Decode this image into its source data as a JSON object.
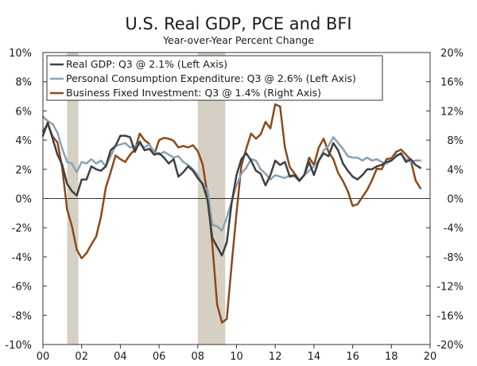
{
  "chart_data": {
    "type": "line",
    "title": "U.S. Real GDP, PCE and BFI",
    "subtitle": "Year-over-Year Percent Change",
    "x_ticks": [
      "00",
      "02",
      "04",
      "06",
      "08",
      "10",
      "12",
      "14",
      "16",
      "18",
      "20"
    ],
    "x_range": [
      2000,
      2020
    ],
    "left_axis": {
      "range": [
        -10,
        10
      ],
      "ticks": [
        10,
        8,
        6,
        4,
        2,
        0,
        -2,
        -4,
        -6,
        -8,
        -10
      ],
      "tick_labels": [
        "10%",
        "8%",
        "6%",
        "4%",
        "2%",
        "0%",
        "-2%",
        "-4%",
        "-6%",
        "-8%",
        "-10%"
      ]
    },
    "right_axis": {
      "range": [
        -20,
        20
      ],
      "ticks": [
        20,
        16,
        12,
        8,
        4,
        0,
        -4,
        -8,
        -12,
        -16,
        -20
      ],
      "tick_labels": [
        "20%",
        "16%",
        "12%",
        "8%",
        "4%",
        "0%",
        "-4%",
        "-8%",
        "-12%",
        "-16%",
        "-20%"
      ]
    },
    "recessions": [
      {
        "start": 2001.25,
        "end": 2001.83
      },
      {
        "start": 2008.0,
        "end": 2009.42
      }
    ],
    "series": [
      {
        "name": "Real GDP",
        "legend": "Real GDP: Q3 @ 2.1% (Left Axis)",
        "color": "#404040",
        "axis": "left",
        "points": [
          [
            2000.0,
            4.3
          ],
          [
            2000.25,
            5.2
          ],
          [
            2000.5,
            4.1
          ],
          [
            2000.75,
            3.0
          ],
          [
            2001.0,
            2.3
          ],
          [
            2001.25,
            1.0
          ],
          [
            2001.5,
            0.5
          ],
          [
            2001.75,
            0.2
          ],
          [
            2002.0,
            1.3
          ],
          [
            2002.25,
            1.3
          ],
          [
            2002.5,
            2.2
          ],
          [
            2002.75,
            2.0
          ],
          [
            2003.0,
            1.9
          ],
          [
            2003.25,
            2.2
          ],
          [
            2003.5,
            3.3
          ],
          [
            2003.75,
            3.6
          ],
          [
            2004.0,
            4.3
          ],
          [
            2004.25,
            4.3
          ],
          [
            2004.5,
            4.2
          ],
          [
            2004.75,
            3.2
          ],
          [
            2005.0,
            3.9
          ],
          [
            2005.25,
            3.3
          ],
          [
            2005.5,
            3.4
          ],
          [
            2005.75,
            3.0
          ],
          [
            2006.0,
            3.1
          ],
          [
            2006.25,
            2.8
          ],
          [
            2006.5,
            2.4
          ],
          [
            2006.75,
            2.7
          ],
          [
            2007.0,
            1.5
          ],
          [
            2007.25,
            1.8
          ],
          [
            2007.5,
            2.2
          ],
          [
            2007.75,
            1.9
          ],
          [
            2008.0,
            1.4
          ],
          [
            2008.25,
            1.0
          ],
          [
            2008.5,
            -0.1
          ],
          [
            2008.75,
            -2.7
          ],
          [
            2009.0,
            -3.3
          ],
          [
            2009.25,
            -3.9
          ],
          [
            2009.5,
            -3.0
          ],
          [
            2009.75,
            -0.3
          ],
          [
            2010.0,
            1.6
          ],
          [
            2010.25,
            2.7
          ],
          [
            2010.5,
            3.1
          ],
          [
            2010.75,
            2.6
          ],
          [
            2011.0,
            1.9
          ],
          [
            2011.25,
            1.7
          ],
          [
            2011.5,
            0.9
          ],
          [
            2011.75,
            1.6
          ],
          [
            2012.0,
            2.6
          ],
          [
            2012.25,
            2.3
          ],
          [
            2012.5,
            2.5
          ],
          [
            2012.75,
            1.5
          ],
          [
            2013.0,
            1.6
          ],
          [
            2013.25,
            1.2
          ],
          [
            2013.5,
            1.6
          ],
          [
            2013.75,
            2.5
          ],
          [
            2014.0,
            1.6
          ],
          [
            2014.25,
            2.6
          ],
          [
            2014.5,
            3.1
          ],
          [
            2014.75,
            2.9
          ],
          [
            2015.0,
            3.8
          ],
          [
            2015.25,
            3.3
          ],
          [
            2015.5,
            2.4
          ],
          [
            2015.75,
            1.9
          ],
          [
            2016.0,
            1.5
          ],
          [
            2016.25,
            1.3
          ],
          [
            2016.5,
            1.6
          ],
          [
            2016.75,
            2.0
          ],
          [
            2017.0,
            2.0
          ],
          [
            2017.25,
            2.2
          ],
          [
            2017.5,
            2.3
          ],
          [
            2017.75,
            2.5
          ],
          [
            2018.0,
            2.6
          ],
          [
            2018.25,
            2.9
          ],
          [
            2018.5,
            3.1
          ],
          [
            2018.75,
            2.5
          ],
          [
            2019.0,
            2.7
          ],
          [
            2019.25,
            2.3
          ],
          [
            2019.5,
            2.1
          ]
        ]
      },
      {
        "name": "Personal Consumption Expenditure",
        "legend": "Personal Consumption Expenditure: Q3 @ 2.6% (Left Axis)",
        "color": "#8aa2b6",
        "axis": "left",
        "points": [
          [
            2000.0,
            5.6
          ],
          [
            2000.25,
            5.3
          ],
          [
            2000.5,
            5.1
          ],
          [
            2000.75,
            4.5
          ],
          [
            2001.0,
            3.4
          ],
          [
            2001.25,
            2.5
          ],
          [
            2001.5,
            2.4
          ],
          [
            2001.75,
            1.8
          ],
          [
            2002.0,
            2.5
          ],
          [
            2002.25,
            2.4
          ],
          [
            2002.5,
            2.7
          ],
          [
            2002.75,
            2.4
          ],
          [
            2003.0,
            2.6
          ],
          [
            2003.25,
            2.2
          ],
          [
            2003.5,
            2.9
          ],
          [
            2003.75,
            3.6
          ],
          [
            2004.0,
            3.7
          ],
          [
            2004.25,
            3.8
          ],
          [
            2004.5,
            3.5
          ],
          [
            2004.75,
            3.6
          ],
          [
            2005.0,
            3.7
          ],
          [
            2005.25,
            3.5
          ],
          [
            2005.5,
            3.7
          ],
          [
            2005.75,
            3.2
          ],
          [
            2006.0,
            3.0
          ],
          [
            2006.25,
            3.2
          ],
          [
            2006.5,
            3.0
          ],
          [
            2006.75,
            2.8
          ],
          [
            2007.0,
            2.9
          ],
          [
            2007.25,
            2.5
          ],
          [
            2007.5,
            2.3
          ],
          [
            2007.75,
            2.0
          ],
          [
            2008.0,
            1.6
          ],
          [
            2008.25,
            0.9
          ],
          [
            2008.5,
            0.6
          ],
          [
            2008.75,
            -1.8
          ],
          [
            2009.0,
            -1.9
          ],
          [
            2009.25,
            -2.2
          ],
          [
            2009.5,
            -1.3
          ],
          [
            2009.75,
            -0.2
          ],
          [
            2010.0,
            0.9
          ],
          [
            2010.25,
            1.7
          ],
          [
            2010.5,
            2.1
          ],
          [
            2010.75,
            2.7
          ],
          [
            2011.0,
            2.6
          ],
          [
            2011.25,
            2.0
          ],
          [
            2011.5,
            1.7
          ],
          [
            2011.75,
            1.3
          ],
          [
            2012.0,
            1.6
          ],
          [
            2012.25,
            1.5
          ],
          [
            2012.5,
            1.4
          ],
          [
            2012.75,
            1.6
          ],
          [
            2013.0,
            1.5
          ],
          [
            2013.25,
            1.2
          ],
          [
            2013.5,
            1.6
          ],
          [
            2013.75,
            1.9
          ],
          [
            2014.0,
            2.2
          ],
          [
            2014.25,
            2.6
          ],
          [
            2014.5,
            3.3
          ],
          [
            2014.75,
            3.6
          ],
          [
            2015.0,
            4.2
          ],
          [
            2015.25,
            3.8
          ],
          [
            2015.5,
            3.4
          ],
          [
            2015.75,
            2.9
          ],
          [
            2016.0,
            2.8
          ],
          [
            2016.25,
            2.8
          ],
          [
            2016.5,
            2.6
          ],
          [
            2016.75,
            2.8
          ],
          [
            2017.0,
            2.6
          ],
          [
            2017.25,
            2.7
          ],
          [
            2017.5,
            2.5
          ],
          [
            2017.75,
            2.4
          ],
          [
            2018.0,
            2.6
          ],
          [
            2018.25,
            3.0
          ],
          [
            2018.5,
            3.0
          ],
          [
            2018.75,
            2.7
          ],
          [
            2019.0,
            2.5
          ],
          [
            2019.25,
            2.6
          ],
          [
            2019.5,
            2.6
          ]
        ]
      },
      {
        "name": "Business Fixed Investment",
        "legend": "Business Fixed Investment: Q3 @ 1.4% (Right Axis)",
        "color": "#8c4a1a",
        "axis": "right",
        "points": [
          [
            2000.0,
            9.2
          ],
          [
            2000.25,
            10.2
          ],
          [
            2000.5,
            8.5
          ],
          [
            2000.75,
            7.7
          ],
          [
            2001.0,
            4.2
          ],
          [
            2001.25,
            -1.5
          ],
          [
            2001.5,
            -3.8
          ],
          [
            2001.75,
            -7.0
          ],
          [
            2002.0,
            -8.2
          ],
          [
            2002.25,
            -7.5
          ],
          [
            2002.5,
            -6.3
          ],
          [
            2002.75,
            -5.2
          ],
          [
            2003.0,
            -2.5
          ],
          [
            2003.25,
            1.5
          ],
          [
            2003.5,
            3.6
          ],
          [
            2003.75,
            5.9
          ],
          [
            2004.0,
            5.4
          ],
          [
            2004.25,
            5.0
          ],
          [
            2004.5,
            6.0
          ],
          [
            2004.75,
            6.7
          ],
          [
            2005.0,
            8.9
          ],
          [
            2005.25,
            8.0
          ],
          [
            2005.5,
            7.5
          ],
          [
            2005.75,
            6.0
          ],
          [
            2006.0,
            8.0
          ],
          [
            2006.25,
            8.3
          ],
          [
            2006.5,
            8.2
          ],
          [
            2006.75,
            7.9
          ],
          [
            2007.0,
            7.0
          ],
          [
            2007.25,
            7.2
          ],
          [
            2007.5,
            7.0
          ],
          [
            2007.75,
            7.3
          ],
          [
            2008.0,
            6.5
          ],
          [
            2008.25,
            4.7
          ],
          [
            2008.5,
            0.5
          ],
          [
            2008.75,
            -6.3
          ],
          [
            2009.0,
            -14.5
          ],
          [
            2009.25,
            -17.0
          ],
          [
            2009.5,
            -16.5
          ],
          [
            2009.75,
            -9.0
          ],
          [
            2010.0,
            -2.0
          ],
          [
            2010.25,
            4.5
          ],
          [
            2010.5,
            6.8
          ],
          [
            2010.75,
            8.9
          ],
          [
            2011.0,
            8.2
          ],
          [
            2011.25,
            8.8
          ],
          [
            2011.5,
            10.5
          ],
          [
            2011.75,
            9.6
          ],
          [
            2012.0,
            12.9
          ],
          [
            2012.25,
            12.6
          ],
          [
            2012.5,
            7.0
          ],
          [
            2012.75,
            4.3
          ],
          [
            2013.0,
            3.4
          ],
          [
            2013.25,
            2.5
          ],
          [
            2013.5,
            3.2
          ],
          [
            2013.75,
            5.6
          ],
          [
            2014.0,
            4.6
          ],
          [
            2014.25,
            7.0
          ],
          [
            2014.5,
            8.2
          ],
          [
            2014.75,
            6.4
          ],
          [
            2015.0,
            5.4
          ],
          [
            2015.25,
            3.5
          ],
          [
            2015.5,
            2.4
          ],
          [
            2015.75,
            1.0
          ],
          [
            2016.0,
            -1.0
          ],
          [
            2016.25,
            -0.8
          ],
          [
            2016.5,
            0.2
          ],
          [
            2016.75,
            1.2
          ],
          [
            2017.0,
            2.5
          ],
          [
            2017.25,
            4.1
          ],
          [
            2017.5,
            4.0
          ],
          [
            2017.75,
            5.4
          ],
          [
            2018.0,
            5.5
          ],
          [
            2018.25,
            6.4
          ],
          [
            2018.5,
            6.7
          ],
          [
            2018.75,
            6.0
          ],
          [
            2019.0,
            5.3
          ],
          [
            2019.25,
            2.5
          ],
          [
            2019.5,
            1.4
          ]
        ]
      }
    ]
  }
}
